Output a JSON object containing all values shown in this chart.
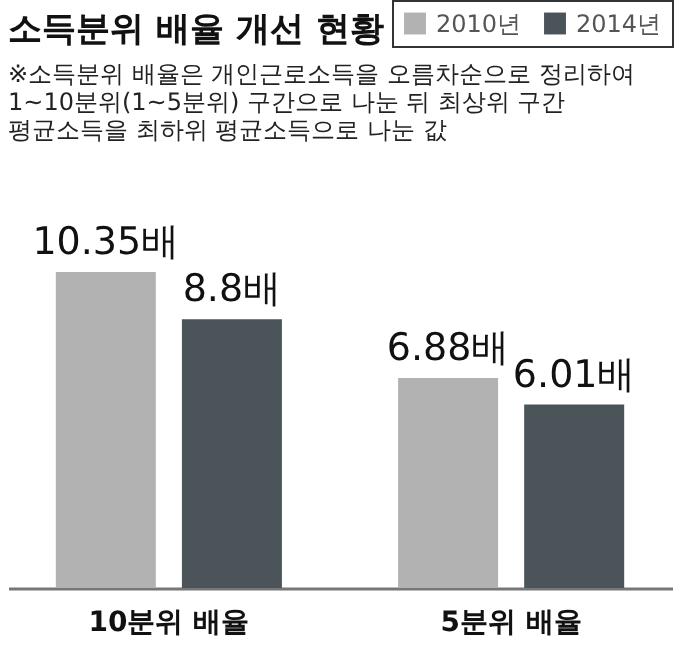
{
  "chart_data": {
    "type": "bar",
    "title": "소득분위 배율 개선 현황",
    "annotations": [
      "※소득분위 배율은 개인근로소득을 오름차순으로 정리하여",
      "1~10분위(1~5분위) 구간으로 나눈 뒤 최상위 구간",
      "평균소득을 최하위 평균소득으로 나눈 값"
    ],
    "categories": [
      "10분위 배율",
      "5분위 배율"
    ],
    "series": [
      {
        "name": "2010년",
        "color": "#b2b2b2",
        "values": [
          10.35,
          6.88
        ],
        "value_labels": [
          "10.35배",
          "6.88배"
        ]
      },
      {
        "name": "2014년",
        "color": "#4a5459",
        "values": [
          8.8,
          6.01
        ],
        "value_labels": [
          "8.8배",
          "6.01배"
        ]
      }
    ],
    "legend": "top right",
    "grid": false,
    "tick_labels": "x"
  }
}
